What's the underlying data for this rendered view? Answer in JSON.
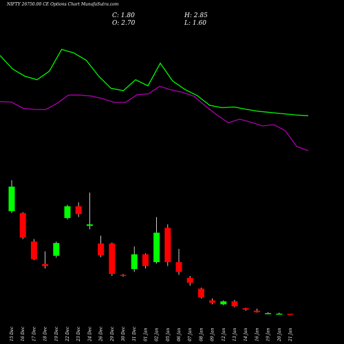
{
  "title": "NIFTY 26750.00  CE Options  Chart MunafaSutra.com",
  "ohlc": {
    "c_label": "C:",
    "c_value": "1.80",
    "h_label": "H:",
    "h_value": "2.85",
    "o_label": "O:",
    "o_value": "2.70",
    "l_label": "L:",
    "l_value": "1.60"
  },
  "colors": {
    "background": "#000000",
    "up": "#00ff00",
    "down": "#ff0000",
    "ma_fast": "#00ff00",
    "ma_slow": "#b000b0",
    "text": "#ffffff"
  },
  "chart_data": {
    "type": "candlestick",
    "categories": [
      "15 Dec",
      "16 Dec",
      "17 Dec",
      "18 Dec",
      "19 Dec",
      "22 Dec",
      "23 Dec",
      "24 Dec",
      "26 Dec",
      "29 Dec",
      "30 Dec",
      "31 Dec",
      "01 Jan",
      "02 Jan",
      "05 Jan",
      "06 Jan",
      "07 Jan",
      "08 Jan",
      "09 Jan",
      "12 Jan",
      "13 Jan",
      "14 Jan",
      "16 Jan",
      "19 Jan",
      "20 Jan",
      "21 Jan"
    ],
    "candles": [
      {
        "open": 212,
        "high": 275,
        "low": 208,
        "close": 262
      },
      {
        "open": 208,
        "high": 210,
        "low": 155,
        "close": 158
      },
      {
        "open": 150,
        "high": 155,
        "low": 112,
        "close": 114
      },
      {
        "open": 104,
        "high": 130,
        "low": 95,
        "close": 100
      },
      {
        "open": 121,
        "high": 150,
        "low": 117,
        "close": 147
      },
      {
        "open": 198,
        "high": 225,
        "low": 195,
        "close": 222
      },
      {
        "open": 222,
        "high": 230,
        "low": 200,
        "close": 206
      },
      {
        "open": 182,
        "high": 250,
        "low": 175,
        "close": 185
      },
      {
        "open": 146,
        "high": 162,
        "low": 118,
        "close": 122
      },
      {
        "open": 146,
        "high": 148,
        "low": 80,
        "close": 84
      },
      {
        "open": 82,
        "high": 84,
        "low": 78,
        "close": 80
      },
      {
        "open": 94,
        "high": 140,
        "low": 88,
        "close": 124
      },
      {
        "open": 124,
        "high": 126,
        "low": 95,
        "close": 100
      },
      {
        "open": 108,
        "high": 200,
        "low": 105,
        "close": 168
      },
      {
        "open": 178,
        "high": 185,
        "low": 100,
        "close": 108
      },
      {
        "open": 108,
        "high": 135,
        "low": 82,
        "close": 88
      },
      {
        "open": 76,
        "high": 80,
        "low": 60,
        "close": 66
      },
      {
        "open": 54,
        "high": 56,
        "low": 34,
        "close": 36
      },
      {
        "open": 30,
        "high": 34,
        "low": 22,
        "close": 25
      },
      {
        "open": 22,
        "high": 30,
        "low": 20,
        "close": 28
      },
      {
        "open": 28,
        "high": 31,
        "low": 16,
        "close": 18
      },
      {
        "open": 14,
        "high": 15,
        "low": 9,
        "close": 11
      },
      {
        "open": 9,
        "high": 13,
        "low": 5,
        "close": 6
      },
      {
        "open": 4,
        "high": 6,
        "low": 3,
        "close": 4
      },
      {
        "open": 3,
        "high": 5,
        "low": 2,
        "close": 3
      },
      {
        "open": 2.7,
        "high": 2.85,
        "low": 1.6,
        "close": 1.8
      }
    ],
    "ma_fast": [
      440,
      385,
      355,
      340,
      375,
      465,
      450,
      420,
      355,
      305,
      295,
      340,
      315,
      408,
      335,
      300,
      275,
      235,
      225,
      228,
      218,
      210,
      205,
      200,
      195,
      192
    ],
    "ma_slow": [
      250,
      248,
      223,
      218,
      217,
      243,
      277,
      277,
      273,
      262,
      247,
      247,
      278,
      282,
      313,
      298,
      288,
      272,
      232,
      195,
      163,
      178,
      165,
      150,
      155,
      130,
      65,
      48
    ],
    "ma_slow_x": [
      0,
      1,
      2,
      3,
      4,
      5,
      6,
      7,
      8,
      9,
      10,
      11,
      12,
      13,
      14,
      15,
      16,
      17,
      18,
      19,
      20,
      21,
      22,
      23,
      24,
      25,
      26,
      27
    ],
    "ylim": [
      0,
      275
    ]
  }
}
